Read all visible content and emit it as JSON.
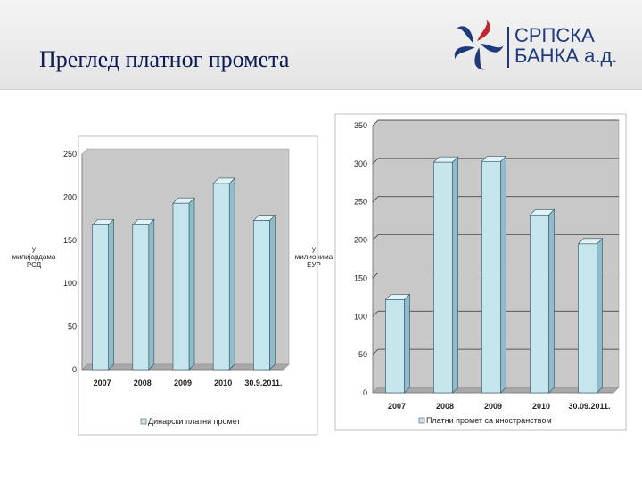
{
  "header": {
    "title": "Преглед платног промета",
    "logo": {
      "line1": "СРПСКА",
      "line2": "БАНКА а.д."
    }
  },
  "colors": {
    "bar_face": "#c6e6ee",
    "bar_side": "#8fbcc8",
    "bar_top": "#e2f3f7",
    "plot_bg": "#c8c8c8",
    "title": "#0c1a55"
  },
  "chart_data": [
    {
      "type": "bar",
      "categories": [
        "2007",
        "2008",
        "2009",
        "2010",
        "30.9.2011."
      ],
      "series": [
        {
          "name": "Динарски платни промет",
          "values": [
            168,
            168,
            193,
            216,
            173
          ]
        }
      ],
      "ylabel": "у милијардама РСД",
      "ylabel_lines": [
        "у",
        "милијардама",
        "РСД"
      ],
      "ylim": [
        0,
        250
      ],
      "yticks": [
        0,
        50,
        100,
        150,
        200,
        250
      ],
      "grid": false,
      "legend": "bottom"
    },
    {
      "type": "bar",
      "categories": [
        "2007",
        "2008",
        "2009",
        "2010",
        "30.09.2011."
      ],
      "series": [
        {
          "name": "Платни промет са иностранством",
          "values": [
            122,
            302,
            303,
            233,
            195
          ]
        }
      ],
      "ylabel": "у милионима ЕУР",
      "ylabel_lines": [
        "у",
        "милионима",
        "ЕУР"
      ],
      "ylim": [
        0,
        350
      ],
      "yticks": [
        0,
        50,
        100,
        150,
        200,
        250,
        300,
        350
      ],
      "grid": true,
      "legend": "bottom"
    }
  ]
}
